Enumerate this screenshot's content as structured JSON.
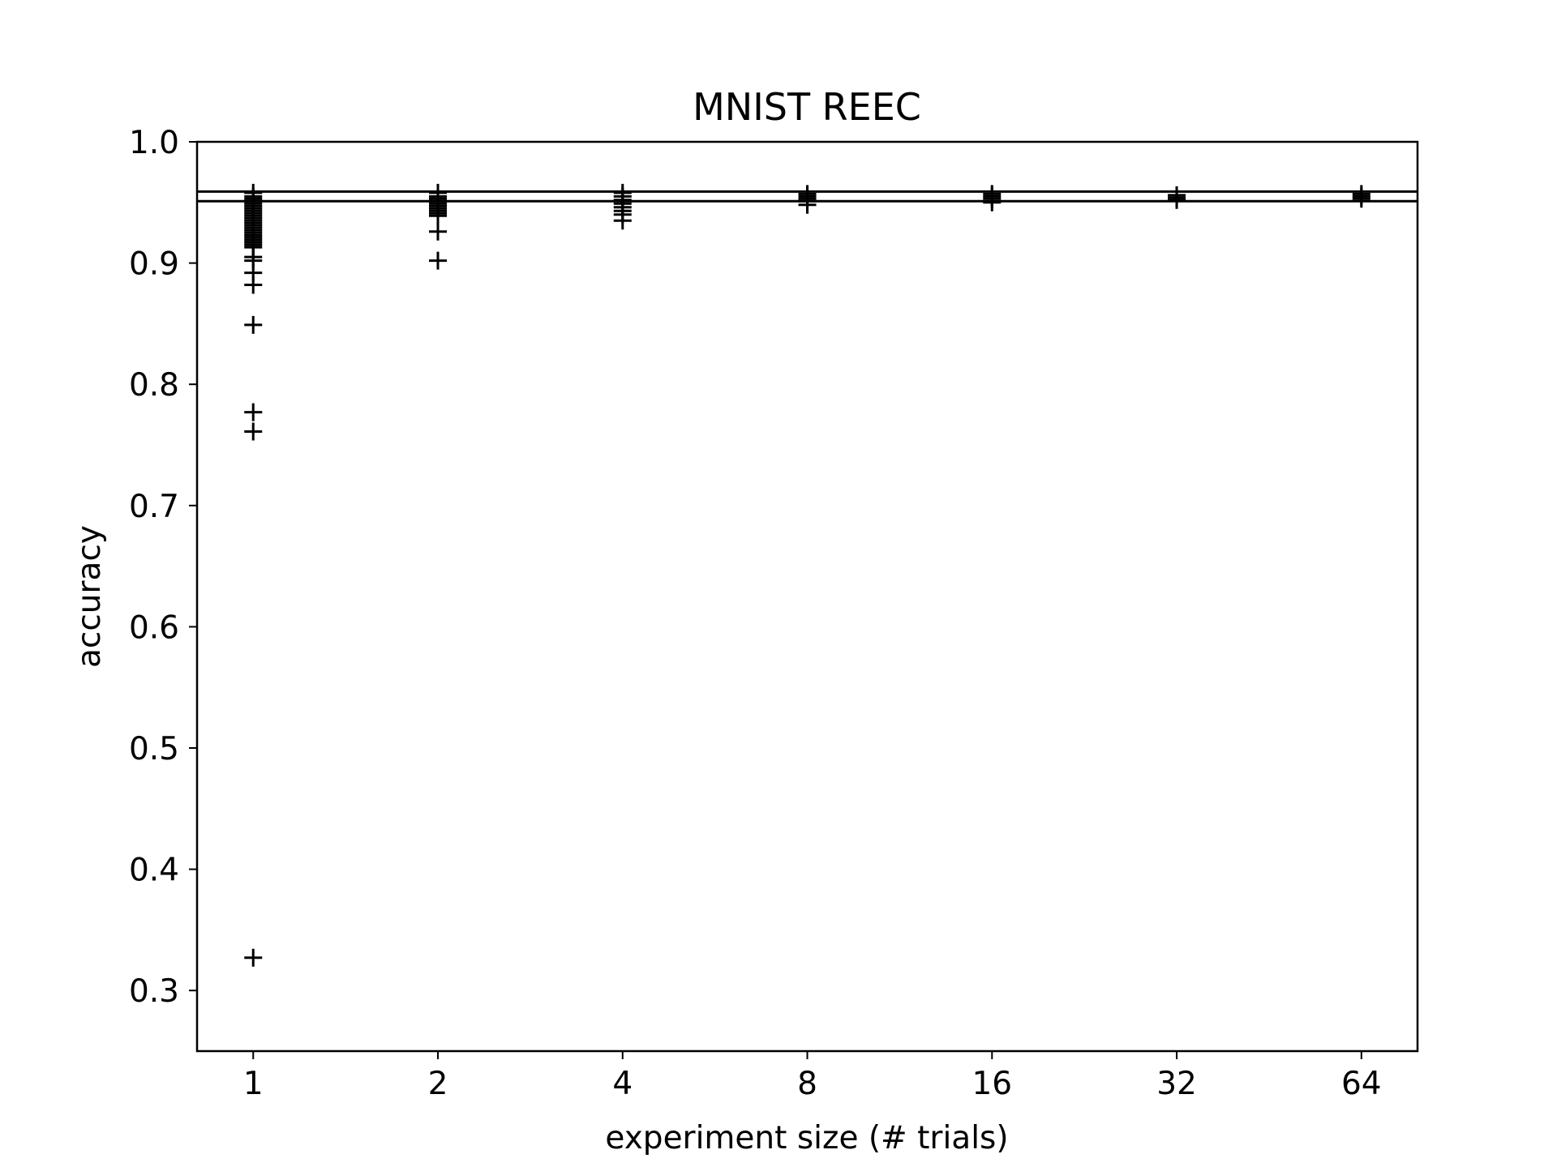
{
  "chart_data": {
    "type": "scatter",
    "title": "MNIST REEC",
    "xlabel": "experiment size (# trials)",
    "ylabel": "accuracy",
    "x_scale": "log2",
    "x_ticks": [
      1,
      2,
      4,
      8,
      16,
      32,
      64
    ],
    "x_tick_labels": [
      "1",
      "2",
      "4",
      "8",
      "16",
      "32",
      "64"
    ],
    "x_range": [
      0.81,
      79
    ],
    "y_ticks": [
      0.3,
      0.4,
      0.5,
      0.6,
      0.7,
      0.8,
      0.9,
      1.0
    ],
    "y_tick_labels": [
      "0.3",
      "0.4",
      "0.5",
      "0.6",
      "0.7",
      "0.8",
      "0.9",
      "1.0"
    ],
    "ylim": [
      0.25,
      1.0
    ],
    "grid": false,
    "marker": "plus",
    "color": "#000000",
    "reference_lines": [
      0.959,
      0.951
    ],
    "points": [
      {
        "x": 1,
        "y": [
          0.958,
          0.955,
          0.953,
          0.951,
          0.949,
          0.947,
          0.945,
          0.943,
          0.941,
          0.939,
          0.937,
          0.935,
          0.933,
          0.931,
          0.929,
          0.927,
          0.925,
          0.923,
          0.921,
          0.919,
          0.917,
          0.915,
          0.913,
          0.905,
          0.902,
          0.892,
          0.882,
          0.849,
          0.777,
          0.761,
          0.327
        ]
      },
      {
        "x": 2,
        "y": [
          0.958,
          0.955,
          0.953,
          0.951,
          0.949,
          0.947,
          0.945,
          0.943,
          0.941,
          0.939,
          0.926,
          0.902
        ]
      },
      {
        "x": 4,
        "y": [
          0.958,
          0.955,
          0.952,
          0.949,
          0.946,
          0.943,
          0.94,
          0.935
        ]
      },
      {
        "x": 8,
        "y": [
          0.957,
          0.955,
          0.953,
          0.951,
          0.948
        ]
      },
      {
        "x": 16,
        "y": [
          0.957,
          0.955,
          0.953,
          0.95
        ]
      },
      {
        "x": 32,
        "y": [
          0.956,
          0.954,
          0.952
        ]
      },
      {
        "x": 64,
        "y": [
          0.957,
          0.955,
          0.953
        ]
      }
    ]
  }
}
